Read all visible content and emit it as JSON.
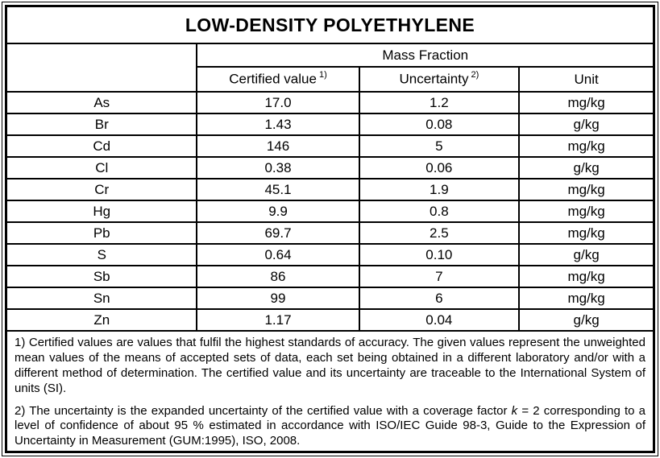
{
  "page": {
    "title": "LOW-DENSITY POLYETHYLENE"
  },
  "table": {
    "group_header": "Mass Fraction",
    "columns": {
      "certified_label": "Certified value",
      "certified_footnote_ref": "1)",
      "uncertainty_label": "Uncertainty",
      "uncertainty_footnote_ref": "2)",
      "unit_label": "Unit"
    },
    "rows": [
      {
        "element": "As",
        "certified": "17.0",
        "uncertainty": "1.2",
        "unit": "mg/kg"
      },
      {
        "element": "Br",
        "certified": "1.43",
        "uncertainty": "0.08",
        "unit": "g/kg"
      },
      {
        "element": "Cd",
        "certified": "146",
        "uncertainty": "5",
        "unit": "mg/kg"
      },
      {
        "element": "Cl",
        "certified": "0.38",
        "uncertainty": "0.06",
        "unit": "g/kg"
      },
      {
        "element": "Cr",
        "certified": "45.1",
        "uncertainty": "1.9",
        "unit": "mg/kg"
      },
      {
        "element": "Hg",
        "certified": "9.9",
        "uncertainty": "0.8",
        "unit": "mg/kg"
      },
      {
        "element": "Pb",
        "certified": "69.7",
        "uncertainty": "2.5",
        "unit": "mg/kg"
      },
      {
        "element": "S",
        "certified": "0.64",
        "uncertainty": "0.10",
        "unit": "g/kg"
      },
      {
        "element": "Sb",
        "certified": "86",
        "uncertainty": "7",
        "unit": "mg/kg"
      },
      {
        "element": "Sn",
        "certified": "99",
        "uncertainty": "6",
        "unit": "mg/kg"
      },
      {
        "element": "Zn",
        "certified": "1.17",
        "uncertainty": "0.04",
        "unit": "g/kg"
      }
    ]
  },
  "footnotes": {
    "note1": "1) Certified values are values that fulfil the highest standards of accuracy. The given values represent the unweighted mean values of the means of accepted sets of data, each set being obtained in a different laboratory and/or with a different method of determination. The certified value and its uncertainty are traceable to the International System of units (SI).",
    "note2_pre": "2) The uncertainty is the expanded uncertainty of the certified value with a coverage factor ",
    "note2_symbol": "k",
    "note2_post": " = 2 corresponding to a level of confidence of about 95 % estimated in accordance with ISO/IEC Guide 98-3, Guide to the Expression of Uncertainty in Measurement (GUM:1995), ISO, 2008."
  },
  "colors": {
    "ink": "#000000",
    "paper": "#ffffff"
  }
}
